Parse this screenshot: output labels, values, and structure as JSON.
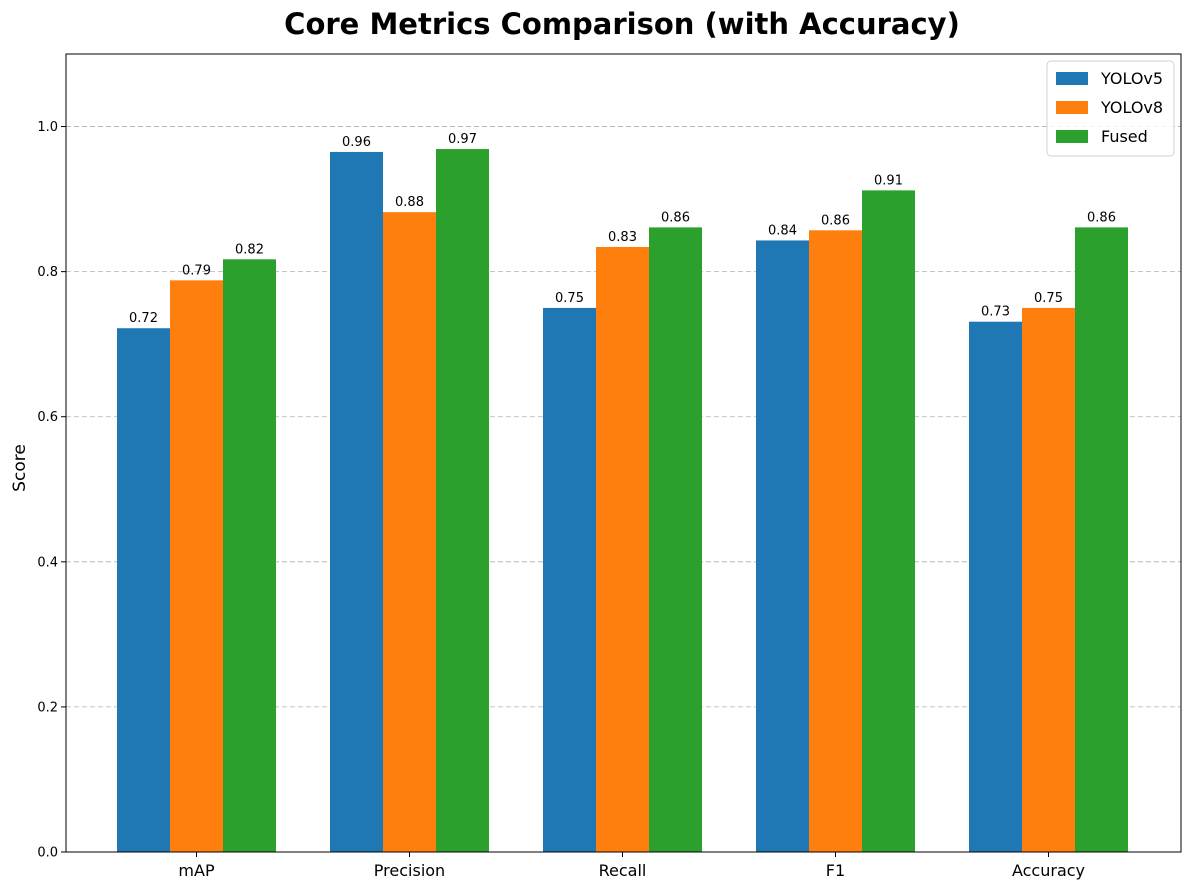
{
  "chart_data": {
    "type": "bar",
    "title": "Core Metrics Comparison (with Accuracy)",
    "xlabel": "",
    "ylabel": "Score",
    "ylim": [
      0,
      1.1
    ],
    "yticks": [
      0.0,
      0.2,
      0.4,
      0.6,
      0.8,
      1.0
    ],
    "ytick_labels": [
      "0.0",
      "0.2",
      "0.4",
      "0.6",
      "0.8",
      "1.0"
    ],
    "grid": "y-dashed",
    "legend_position": "top-right",
    "categories": [
      "mAP",
      "Precision",
      "Recall",
      "F1",
      "Accuracy"
    ],
    "series": [
      {
        "name": "YOLOv5",
        "color": "#1f77b4",
        "values": [
          0.722,
          0.965,
          0.75,
          0.843,
          0.731
        ],
        "labels": [
          "0.72",
          "0.96",
          "0.75",
          "0.84",
          "0.73"
        ]
      },
      {
        "name": "YOLOv8",
        "color": "#ff7f0e",
        "values": [
          0.788,
          0.882,
          0.834,
          0.857,
          0.75
        ],
        "labels": [
          "0.79",
          "0.88",
          "0.83",
          "0.86",
          "0.75"
        ]
      },
      {
        "name": "Fused",
        "color": "#2ca02c",
        "values": [
          0.817,
          0.969,
          0.861,
          0.912,
          0.861
        ],
        "labels": [
          "0.82",
          "0.97",
          "0.86",
          "0.91",
          "0.86"
        ]
      }
    ]
  }
}
